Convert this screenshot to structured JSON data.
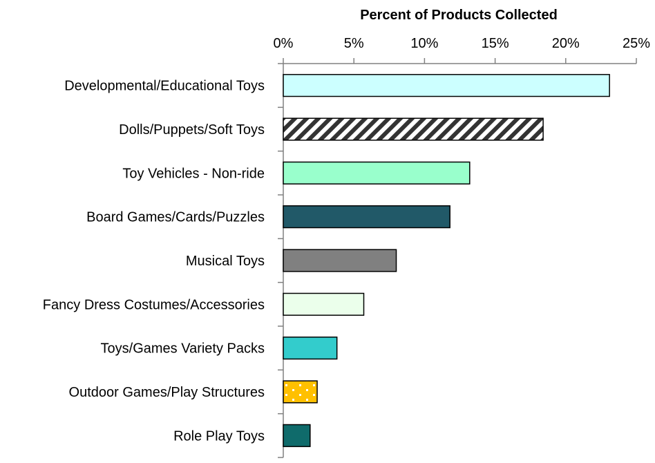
{
  "chart_data": {
    "type": "bar",
    "orientation": "horizontal",
    "xlabel": "Percent of Products Collected",
    "xlabel_position": "top",
    "ticks_position": "top",
    "xlim": [
      0,
      25
    ],
    "xticks": [
      0,
      5,
      10,
      15,
      20,
      25
    ],
    "xtick_labels": [
      "0%",
      "5%",
      "10%",
      "15%",
      "20%",
      "25%"
    ],
    "grid": false,
    "legend": "none",
    "categories": [
      "Developmental/Educational Toys",
      "Dolls/Puppets/Soft Toys",
      "Toy Vehicles - Non-ride",
      "Board Games/Cards/Puzzles",
      "Musical Toys",
      "Fancy Dress Costumes/Accessories",
      "Toys/Games Variety Packs",
      "Outdoor Games/Play Structures",
      "Role Play Toys"
    ],
    "values": [
      23.1,
      18.4,
      13.2,
      11.8,
      8.0,
      5.7,
      3.8,
      2.4,
      1.9
    ],
    "bar_styles": [
      {
        "fill": "#ccffff",
        "stroke": "#000000",
        "pattern": "solid"
      },
      {
        "fill": "#ffffff",
        "stroke": "#000000",
        "pattern": "diagonal-stripes",
        "pattern_color": "#333333"
      },
      {
        "fill": "#99ffcc",
        "stroke": "#000000",
        "pattern": "solid"
      },
      {
        "fill": "#215968",
        "stroke": "#000000",
        "pattern": "solid"
      },
      {
        "fill": "#808080",
        "stroke": "#000000",
        "pattern": "solid"
      },
      {
        "fill": "#ebffeb",
        "stroke": "#000000",
        "pattern": "solid"
      },
      {
        "fill": "#33cccc",
        "stroke": "#000000",
        "pattern": "solid"
      },
      {
        "fill": "#ffc000",
        "stroke": "#000000",
        "pattern": "dots",
        "pattern_color": "#ffffff"
      },
      {
        "fill": "#0f6b6b",
        "stroke": "#000000",
        "pattern": "solid"
      }
    ]
  }
}
